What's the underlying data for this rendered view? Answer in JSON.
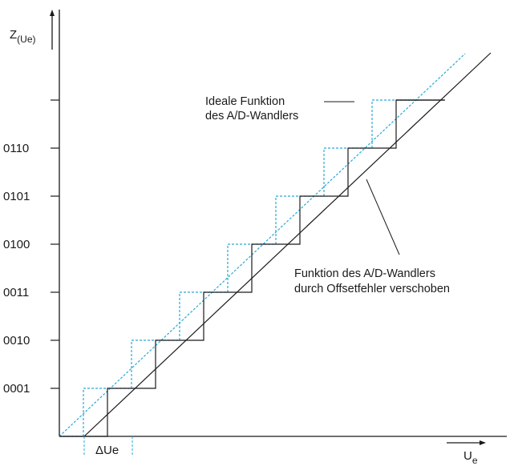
{
  "y_axis_label": {
    "main": "Z",
    "sub": "(Ue)"
  },
  "x_axis_label": {
    "main": "U",
    "sub": "e"
  },
  "y_tick_labels": [
    "0001",
    "0010",
    "0011",
    "0100",
    "0101",
    "0110"
  ],
  "delta_label": "ΔUe",
  "annotation_ideal": {
    "line1": "Ideale Funktion",
    "line2": "des A/D-Wandlers"
  },
  "annotation_offset": {
    "line1": "Funktion des A/D-Wandlers",
    "line2": "durch Offsetfehler verschoben"
  },
  "colors": {
    "ideal": "#29a9d6",
    "offset": "#1a1a1a",
    "axes": "#1a1a1a"
  },
  "chart_data": {
    "type": "line",
    "series": [
      {
        "style": "dashed",
        "color": "#29a9d6",
        "steps": [
          0,
          1,
          2,
          3,
          4,
          5,
          6,
          7
        ]
      },
      {
        "style": "solid",
        "color": "#1a1a1a",
        "steps": [
          0,
          1,
          2,
          3,
          4,
          5,
          6,
          7
        ]
      }
    ],
    "grid": false
  }
}
